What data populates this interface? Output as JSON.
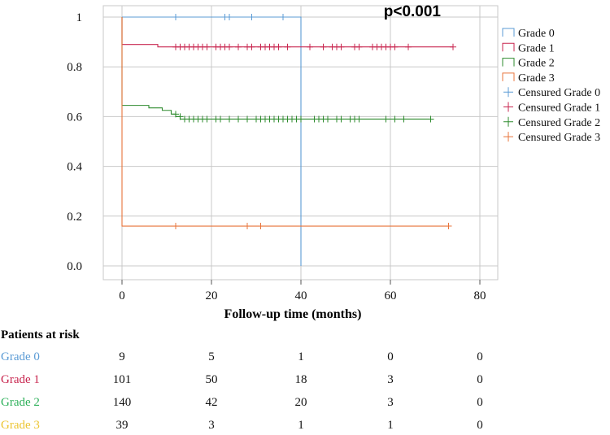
{
  "chart_data": {
    "type": "line",
    "subtype": "kaplan-meier",
    "title": "",
    "xlabel": "Follow-up time (months)",
    "ylabel": "",
    "xlim": [
      -5,
      84
    ],
    "ylim": [
      -0.04,
      1.04
    ],
    "x_ticks": [
      0,
      20,
      40,
      60,
      80
    ],
    "x_tick_labels": [
      "0",
      "20",
      "40",
      "60",
      "80"
    ],
    "y_ticks": [
      1.0,
      0.8,
      0.6,
      0.4,
      0.2,
      0.0
    ],
    "y_tick_labels": [
      "1",
      "0.8",
      "0.6",
      "0.4",
      "0.2",
      "0.0"
    ],
    "grid": true,
    "legend_position": "right",
    "annotation": "p<0.001",
    "legend": [
      {
        "label": "Grade 0",
        "kind": "step",
        "color": "#5b9bd5"
      },
      {
        "label": "Grade 1",
        "kind": "step",
        "color": "#c8264f"
      },
      {
        "label": "Grade 2",
        "kind": "step",
        "color": "#2e8b2e"
      },
      {
        "label": "Grade 3",
        "kind": "step",
        "color": "#e8743b"
      },
      {
        "label": "Censured Grade 0",
        "kind": "censor",
        "color": "#5b9bd5"
      },
      {
        "label": "Censured Grade 1",
        "kind": "censor",
        "color": "#c8264f"
      },
      {
        "label": "Censured Grade 2",
        "kind": "censor",
        "color": "#2e8b2e"
      },
      {
        "label": "Censured Grade 3",
        "kind": "censor",
        "color": "#e8743b"
      }
    ],
    "series": [
      {
        "name": "Grade 0",
        "color": "#5b9bd5",
        "steps": [
          [
            0,
            1.0
          ],
          [
            40,
            1.0
          ],
          [
            40,
            0.0
          ]
        ],
        "censored": [
          [
            12,
            1.0
          ],
          [
            23,
            1.0
          ],
          [
            24,
            1.0
          ],
          [
            29,
            1.0
          ],
          [
            36,
            1.0
          ]
        ]
      },
      {
        "name": "Grade 1",
        "color": "#c8264f",
        "steps": [
          [
            0,
            1.0
          ],
          [
            0,
            0.89
          ],
          [
            8,
            0.89
          ],
          [
            8,
            0.88
          ],
          [
            74,
            0.88
          ]
        ],
        "censored": [
          [
            12,
            0.88
          ],
          [
            13,
            0.88
          ],
          [
            14,
            0.88
          ],
          [
            15,
            0.88
          ],
          [
            16,
            0.88
          ],
          [
            17,
            0.88
          ],
          [
            18,
            0.88
          ],
          [
            19,
            0.88
          ],
          [
            21,
            0.88
          ],
          [
            22,
            0.88
          ],
          [
            23,
            0.88
          ],
          [
            24,
            0.88
          ],
          [
            26,
            0.88
          ],
          [
            28,
            0.88
          ],
          [
            29,
            0.88
          ],
          [
            31,
            0.88
          ],
          [
            32,
            0.88
          ],
          [
            33,
            0.88
          ],
          [
            34,
            0.88
          ],
          [
            35,
            0.88
          ],
          [
            37,
            0.88
          ],
          [
            42,
            0.88
          ],
          [
            45,
            0.88
          ],
          [
            47,
            0.88
          ],
          [
            48,
            0.88
          ],
          [
            49,
            0.88
          ],
          [
            52,
            0.88
          ],
          [
            53,
            0.88
          ],
          [
            56,
            0.88
          ],
          [
            57,
            0.88
          ],
          [
            58,
            0.88
          ],
          [
            59,
            0.88
          ],
          [
            60,
            0.88
          ],
          [
            61,
            0.88
          ],
          [
            64,
            0.88
          ],
          [
            74,
            0.88
          ]
        ]
      },
      {
        "name": "Grade 2",
        "color": "#2e8b2e",
        "steps": [
          [
            0,
            1.0
          ],
          [
            0,
            0.645
          ],
          [
            6,
            0.645
          ],
          [
            6,
            0.635
          ],
          [
            9,
            0.635
          ],
          [
            9,
            0.625
          ],
          [
            11,
            0.625
          ],
          [
            11,
            0.61
          ],
          [
            12,
            0.61
          ],
          [
            12,
            0.6
          ],
          [
            13,
            0.6
          ],
          [
            13,
            0.59
          ],
          [
            69,
            0.59
          ]
        ],
        "censored": [
          [
            12,
            0.61
          ],
          [
            13,
            0.6
          ],
          [
            14,
            0.59
          ],
          [
            15,
            0.59
          ],
          [
            16,
            0.59
          ],
          [
            17,
            0.59
          ],
          [
            18,
            0.59
          ],
          [
            19,
            0.59
          ],
          [
            21,
            0.59
          ],
          [
            22,
            0.59
          ],
          [
            24,
            0.59
          ],
          [
            26,
            0.59
          ],
          [
            28,
            0.59
          ],
          [
            30,
            0.59
          ],
          [
            31,
            0.59
          ],
          [
            32,
            0.59
          ],
          [
            33,
            0.59
          ],
          [
            34,
            0.59
          ],
          [
            35,
            0.59
          ],
          [
            36,
            0.59
          ],
          [
            37,
            0.59
          ],
          [
            38,
            0.59
          ],
          [
            39,
            0.59
          ],
          [
            40,
            0.59
          ],
          [
            43,
            0.59
          ],
          [
            44,
            0.59
          ],
          [
            45,
            0.59
          ],
          [
            46,
            0.59
          ],
          [
            48,
            0.59
          ],
          [
            49,
            0.59
          ],
          [
            51,
            0.59
          ],
          [
            52,
            0.59
          ],
          [
            53,
            0.59
          ],
          [
            59,
            0.59
          ],
          [
            61,
            0.59
          ],
          [
            63,
            0.59
          ],
          [
            69,
            0.59
          ]
        ]
      },
      {
        "name": "Grade 3",
        "color": "#e8743b",
        "steps": [
          [
            0,
            1.0
          ],
          [
            0,
            0.16
          ],
          [
            73,
            0.16
          ]
        ],
        "censored": [
          [
            12,
            0.16
          ],
          [
            28,
            0.16
          ],
          [
            31,
            0.16
          ],
          [
            73,
            0.16
          ]
        ]
      }
    ]
  },
  "risk_table": {
    "title": "Patients at risk",
    "x": [
      0,
      20,
      40,
      60,
      80
    ],
    "rows": [
      {
        "label": "Grade 0",
        "color": "#5b9bd5",
        "values": [
          "9",
          "5",
          "1",
          "0",
          "0"
        ]
      },
      {
        "label": "Grade 1",
        "color": "#c8264f",
        "values": [
          "101",
          "50",
          "18",
          "3",
          "0"
        ]
      },
      {
        "label": "Grade 2",
        "color": "#2eb05a",
        "values": [
          "140",
          "42",
          "20",
          "3",
          "0"
        ]
      },
      {
        "label": "Grade 3",
        "color": "#ecc430",
        "values": [
          "39",
          "3",
          "1",
          "1",
          "0"
        ]
      }
    ]
  }
}
